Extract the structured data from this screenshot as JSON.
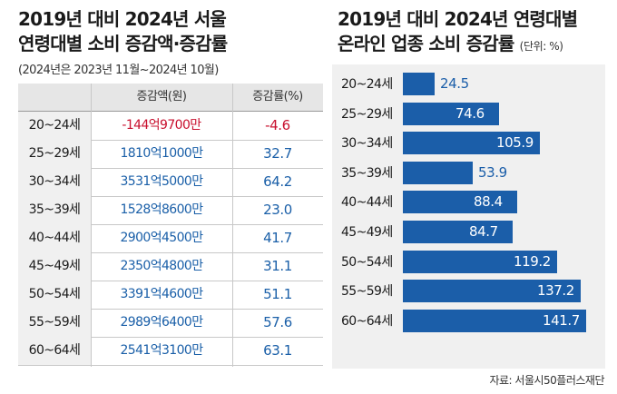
{
  "left": {
    "title_line1": "2019년 대비 2024년 서울",
    "title_line2": "연령대별 소비 증감액·증감률",
    "subtitle": "(2024년은 2023년 11월~2024년 10월)",
    "col_amount": "증감액(원)",
    "col_rate": "증감률(%)"
  },
  "right": {
    "title_line1": "2019년 대비 2024년 연령대별",
    "title_line2": "온라인 업종 소비 증감률",
    "unit": "(단위: %)"
  },
  "source": "자료: 서울시50플러스재단",
  "colors": {
    "accent_blue": "#1a5fa8",
    "negative_red": "#c8102e",
    "bar_blue": "#1b5ea9"
  },
  "chart_data": [
    {
      "type": "table",
      "columns": [
        "",
        "증감액(원)",
        "증감률(%)"
      ],
      "rows": [
        {
          "age": "20~24세",
          "amount": "-144억9700만",
          "rate": "-4.6",
          "negative": true
        },
        {
          "age": "25~29세",
          "amount": "1810억1000만",
          "rate": "32.7",
          "negative": false
        },
        {
          "age": "30~34세",
          "amount": "3531억5000만",
          "rate": "64.2",
          "negative": false
        },
        {
          "age": "35~39세",
          "amount": "1528억8600만",
          "rate": "23.0",
          "negative": false
        },
        {
          "age": "40~44세",
          "amount": "2900억4500만",
          "rate": "41.7",
          "negative": false
        },
        {
          "age": "45~49세",
          "amount": "2350억4800만",
          "rate": "31.1",
          "negative": false
        },
        {
          "age": "50~54세",
          "amount": "3391억4600만",
          "rate": "51.1",
          "negative": false
        },
        {
          "age": "55~59세",
          "amount": "2989억6400만",
          "rate": "57.6",
          "negative": false
        },
        {
          "age": "60~64세",
          "amount": "2541억3100만",
          "rate": "63.1",
          "negative": false
        }
      ]
    },
    {
      "type": "bar",
      "orientation": "horizontal",
      "categories": [
        "20~24세",
        "25~29세",
        "30~34세",
        "35~39세",
        "40~44세",
        "45~49세",
        "50~54세",
        "55~59세",
        "60~64세"
      ],
      "values": [
        24.5,
        74.6,
        105.9,
        53.9,
        88.4,
        84.7,
        119.2,
        137.2,
        141.7
      ],
      "value_labels": [
        "24.5",
        "74.6",
        "105.9",
        "53.9",
        "88.4",
        "84.7",
        "119.2",
        "137.2",
        "141.7"
      ],
      "xlim": [
        0,
        141.7
      ],
      "grid": false,
      "legend": "none"
    }
  ]
}
